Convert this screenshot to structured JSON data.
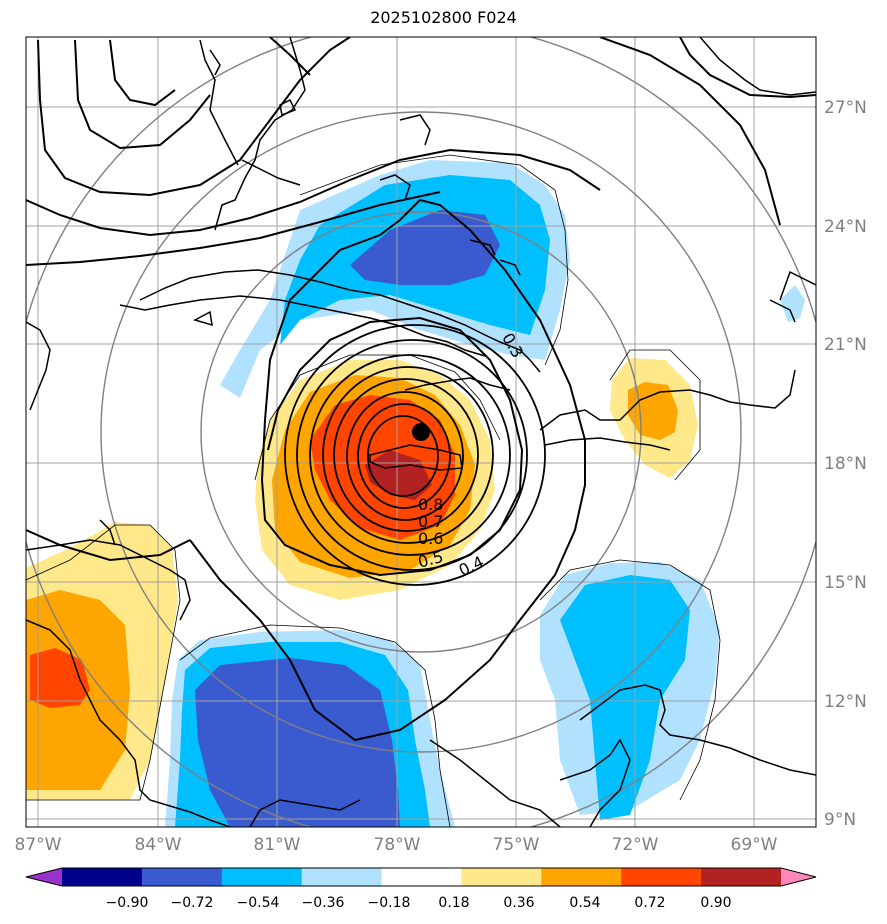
{
  "title": "2025102800 F024",
  "map": {
    "lon_labels": [
      "87°W",
      "84°W",
      "81°W",
      "78°W",
      "75°W",
      "72°W",
      "69°W"
    ],
    "lat_labels": [
      "27°N",
      "24°N",
      "21°N",
      "18°N",
      "15°N",
      "12°N",
      "9°N"
    ],
    "contour_labels": [
      "0.3",
      "0.4",
      "0.5",
      "0.6",
      "0.7",
      "0.8"
    ],
    "center_marker": "storm-center",
    "colors": {
      "grid": "#a0a0a0",
      "tick_text": "#808080"
    }
  },
  "colorbar": {
    "ticks": [
      "−0.90",
      "−0.72",
      "−0.54",
      "−0.36",
      "−0.18",
      "0.18",
      "0.36",
      "0.54",
      "0.72",
      "0.90"
    ],
    "colors": [
      "#9932cc",
      "#00008b",
      "#3a5bd0",
      "#00bfff",
      "#b0e2ff",
      "#ffffff",
      "#ffe88a",
      "#ffa500",
      "#ff4500",
      "#b22222",
      "#ff88bb"
    ]
  }
}
